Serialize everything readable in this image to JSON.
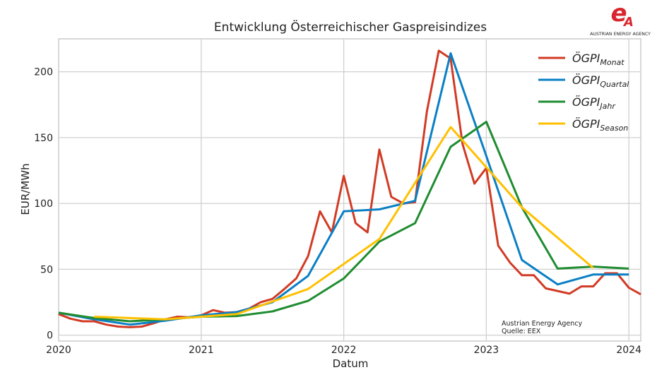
{
  "logo": {
    "text": "AUSTRIAN ENERGY AGENCY",
    "color": "#d9262e"
  },
  "chart_data": {
    "type": "line",
    "title": "Entwicklung Österreichischer Gaspreisindizes",
    "xlabel": "Datum",
    "ylabel": "EUR/MWh",
    "xlim": [
      "2020-01",
      "2024-02"
    ],
    "ylim": [
      -4.5,
      225
    ],
    "x_ticks": [
      "2020",
      "2021",
      "2022",
      "2023",
      "2024"
    ],
    "y_ticks": [
      0,
      50,
      100,
      150,
      200
    ],
    "grid": true,
    "legend_position": "top-right",
    "annotation": [
      "Austrian Energy Agency",
      "Quelle: EEX"
    ],
    "series": [
      {
        "name": "ÖGPI",
        "sub": "Monat",
        "color": "#d13b24",
        "x": [
          "2020-01",
          "2020-02",
          "2020-03",
          "2020-04",
          "2020-05",
          "2020-06",
          "2020-07",
          "2020-08",
          "2020-09",
          "2020-10",
          "2020-11",
          "2020-12",
          "2021-01",
          "2021-02",
          "2021-03",
          "2021-04",
          "2021-05",
          "2021-06",
          "2021-07",
          "2021-08",
          "2021-09",
          "2021-10",
          "2021-11",
          "2021-12",
          "2022-01",
          "2022-02",
          "2022-03",
          "2022-04",
          "2022-05",
          "2022-06",
          "2022-07",
          "2022-08",
          "2022-09",
          "2022-10",
          "2022-11",
          "2022-12",
          "2023-01",
          "2023-02",
          "2023-03",
          "2023-04",
          "2023-05",
          "2023-06",
          "2023-07",
          "2023-08",
          "2023-09",
          "2023-10",
          "2023-11",
          "2023-12",
          "2024-01",
          "2024-02"
        ],
        "y": [
          16,
          12.5,
          10.5,
          10.5,
          8,
          6.5,
          6,
          6.5,
          9,
          12,
          14,
          13.5,
          15,
          19,
          17,
          17.5,
          20,
          25,
          27.5,
          35,
          43,
          60,
          94,
          78,
          121,
          85,
          78,
          141,
          105,
          100,
          101,
          170,
          216,
          210,
          145,
          115,
          127,
          68,
          55,
          45.5,
          45.5,
          35.5,
          33.5,
          31.5,
          37,
          37,
          47,
          47,
          36,
          31
        ]
      },
      {
        "name": "ÖGPI",
        "sub": "Quartal",
        "color": "#0a7fc4",
        "x": [
          "2020-01",
          "2020-04",
          "2020-07",
          "2020-10",
          "2021-01",
          "2021-04",
          "2021-07",
          "2021-10",
          "2022-01",
          "2022-04",
          "2022-07",
          "2022-10",
          "2023-01",
          "2023-04",
          "2023-07",
          "2023-10",
          "2024-01"
        ],
        "y": [
          17,
          12,
          8,
          11,
          15,
          17.5,
          25,
          45,
          94,
          95.5,
          102,
          214,
          136,
          57,
          38.5,
          46,
          46
        ]
      },
      {
        "name": "ÖGPI",
        "sub": "Jahr",
        "color": "#1f8c30",
        "x": [
          "2020-01",
          "2020-04",
          "2020-07",
          "2020-10",
          "2021-01",
          "2021-04",
          "2021-07",
          "2021-10",
          "2022-01",
          "2022-04",
          "2022-07",
          "2022-10",
          "2023-01",
          "2023-04",
          "2023-07",
          "2023-10",
          "2024-01"
        ],
        "y": [
          17,
          13,
          10.5,
          12,
          14,
          14.5,
          18,
          26,
          43,
          71,
          85,
          143,
          162,
          97,
          50.5,
          52,
          50.5
        ]
      },
      {
        "name": "ÖGPI",
        "sub": "Season",
        "color": "#ffc000",
        "x": [
          "2020-04",
          "2020-10",
          "2021-04",
          "2021-10",
          "2022-04",
          "2022-10",
          "2023-04",
          "2023-10"
        ],
        "y": [
          14,
          12,
          16,
          35,
          73,
          158,
          97,
          51
        ]
      }
    ]
  }
}
